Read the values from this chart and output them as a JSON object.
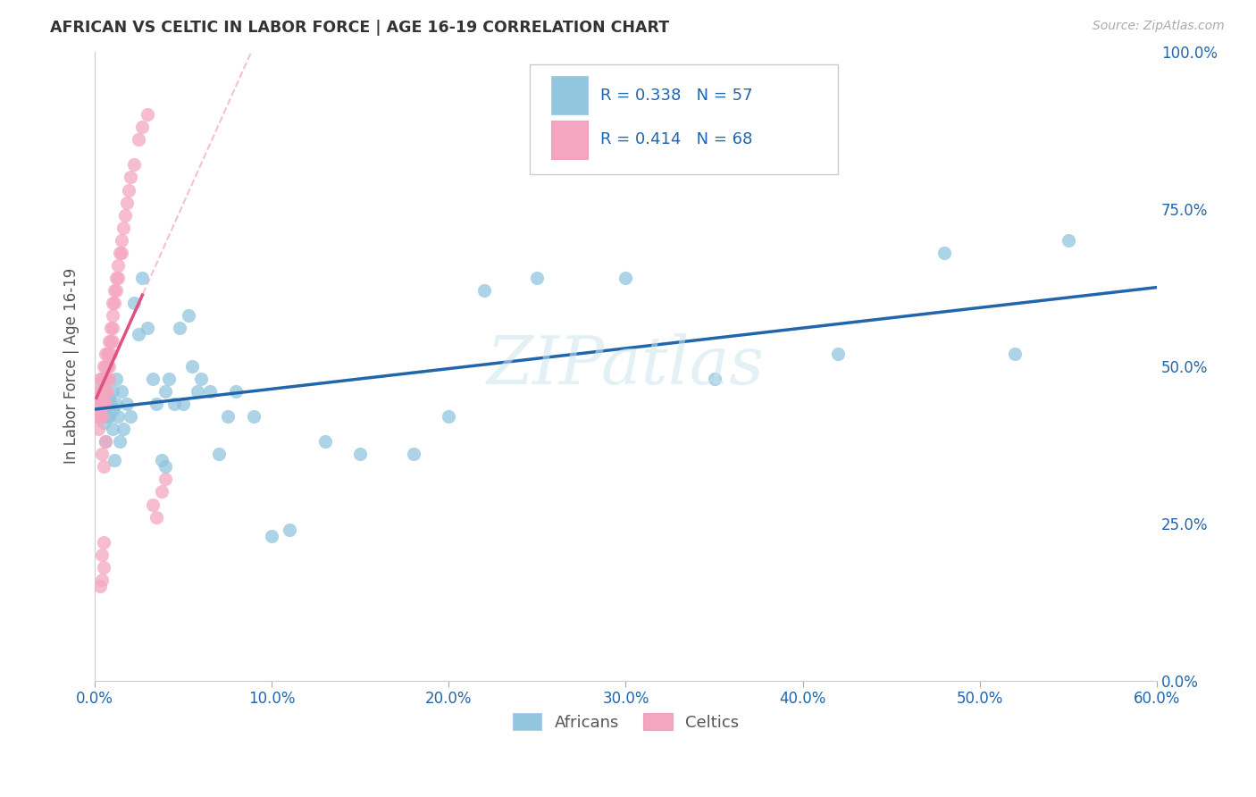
{
  "title": "AFRICAN VS CELTIC IN LABOR FORCE | AGE 16-19 CORRELATION CHART",
  "source": "Source: ZipAtlas.com",
  "ylabel_label": "In Labor Force | Age 16-19",
  "legend_label1": "Africans",
  "legend_label2": "Celtics",
  "r1": 0.338,
  "n1": 57,
  "r2": 0.414,
  "n2": 68,
  "color1": "#92c5de",
  "color2": "#f4a6c0",
  "line_color1": "#2166ac",
  "line_color2": "#e05080",
  "watermark": "ZIPatlas",
  "xlim": [
    0.0,
    0.6
  ],
  "ylim": [
    0.0,
    1.0
  ],
  "africans_x": [
    0.003,
    0.004,
    0.005,
    0.006,
    0.007,
    0.007,
    0.008,
    0.008,
    0.009,
    0.01,
    0.01,
    0.01,
    0.011,
    0.012,
    0.012,
    0.013,
    0.014,
    0.015,
    0.016,
    0.018,
    0.02,
    0.022,
    0.025,
    0.027,
    0.03,
    0.033,
    0.035,
    0.038,
    0.04,
    0.04,
    0.042,
    0.045,
    0.048,
    0.05,
    0.053,
    0.055,
    0.058,
    0.06,
    0.065,
    0.07,
    0.075,
    0.08,
    0.09,
    0.1,
    0.11,
    0.13,
    0.15,
    0.18,
    0.2,
    0.22,
    0.25,
    0.3,
    0.35,
    0.42,
    0.48,
    0.52,
    0.55
  ],
  "africans_y": [
    0.44,
    0.47,
    0.41,
    0.38,
    0.42,
    0.5,
    0.45,
    0.42,
    0.44,
    0.46,
    0.43,
    0.4,
    0.35,
    0.48,
    0.44,
    0.42,
    0.38,
    0.46,
    0.4,
    0.44,
    0.42,
    0.6,
    0.55,
    0.64,
    0.56,
    0.48,
    0.44,
    0.35,
    0.46,
    0.34,
    0.48,
    0.44,
    0.56,
    0.44,
    0.58,
    0.5,
    0.46,
    0.48,
    0.46,
    0.36,
    0.42,
    0.46,
    0.42,
    0.23,
    0.24,
    0.38,
    0.36,
    0.36,
    0.42,
    0.62,
    0.64,
    0.64,
    0.48,
    0.52,
    0.68,
    0.52,
    0.7
  ],
  "celtics_x": [
    0.001,
    0.001,
    0.002,
    0.002,
    0.002,
    0.003,
    0.003,
    0.003,
    0.003,
    0.003,
    0.004,
    0.004,
    0.004,
    0.004,
    0.005,
    0.005,
    0.005,
    0.005,
    0.006,
    0.006,
    0.006,
    0.006,
    0.006,
    0.007,
    0.007,
    0.007,
    0.007,
    0.008,
    0.008,
    0.008,
    0.008,
    0.009,
    0.009,
    0.009,
    0.01,
    0.01,
    0.01,
    0.01,
    0.011,
    0.011,
    0.012,
    0.012,
    0.013,
    0.013,
    0.014,
    0.015,
    0.015,
    0.016,
    0.017,
    0.018,
    0.019,
    0.02,
    0.022,
    0.025,
    0.027,
    0.03,
    0.033,
    0.035,
    0.038,
    0.04,
    0.004,
    0.005,
    0.006,
    0.004,
    0.005,
    0.003,
    0.004,
    0.005
  ],
  "celtics_y": [
    0.44,
    0.42,
    0.44,
    0.42,
    0.4,
    0.48,
    0.44,
    0.42,
    0.44,
    0.46,
    0.44,
    0.42,
    0.48,
    0.46,
    0.5,
    0.48,
    0.46,
    0.44,
    0.52,
    0.5,
    0.48,
    0.46,
    0.44,
    0.52,
    0.5,
    0.48,
    0.46,
    0.54,
    0.52,
    0.5,
    0.48,
    0.56,
    0.54,
    0.52,
    0.6,
    0.58,
    0.56,
    0.54,
    0.62,
    0.6,
    0.64,
    0.62,
    0.66,
    0.64,
    0.68,
    0.7,
    0.68,
    0.72,
    0.74,
    0.76,
    0.78,
    0.8,
    0.82,
    0.86,
    0.88,
    0.9,
    0.28,
    0.26,
    0.3,
    0.32,
    0.36,
    0.34,
    0.38,
    0.16,
    0.18,
    0.15,
    0.2,
    0.22
  ],
  "xticks": [
    0.0,
    0.1,
    0.2,
    0.3,
    0.4,
    0.5,
    0.6
  ],
  "xticklabels": [
    "0.0%",
    "10.0%",
    "20.0%",
    "30.0%",
    "40.0%",
    "50.0%",
    "60.0%"
  ],
  "yticks": [
    0.0,
    0.25,
    0.5,
    0.75,
    1.0
  ],
  "yticklabels": [
    "0.0%",
    "25.0%",
    "50.0%",
    "75.0%",
    "100.0%"
  ]
}
